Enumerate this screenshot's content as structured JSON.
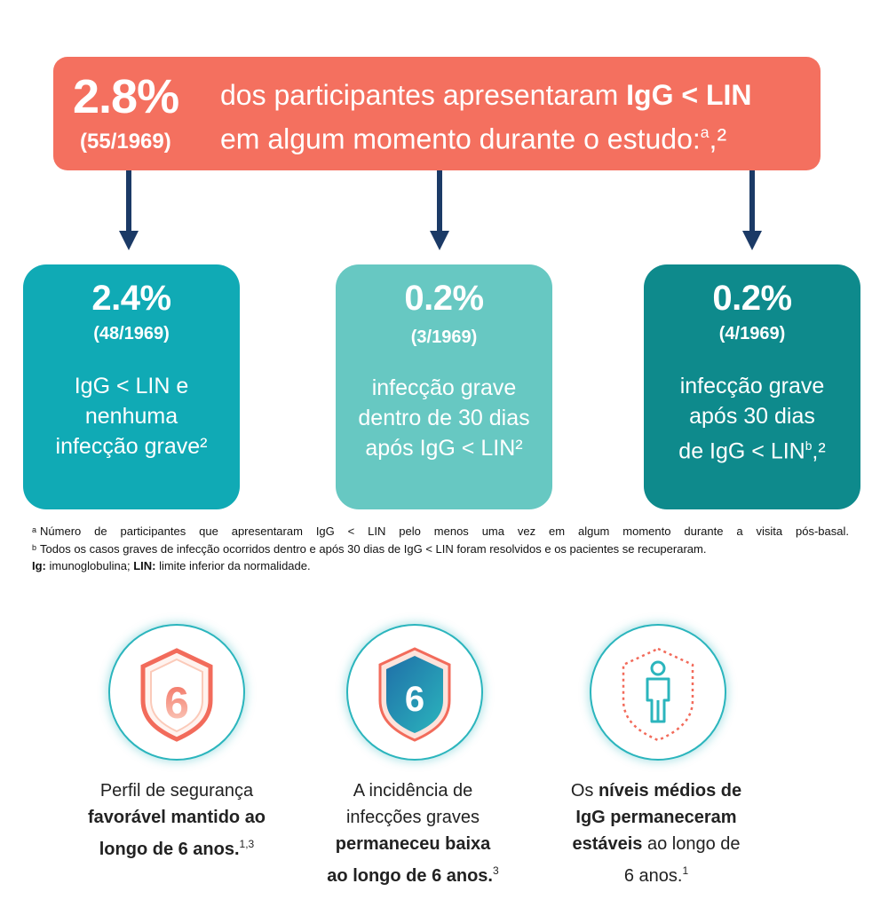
{
  "banner": {
    "percent": "2.8%",
    "fraction": "(55/1969)",
    "line1_plain": "dos participantes apresentaram ",
    "line1_bold": "IgG < LIN",
    "line2": "em algum momento durante o estudo:",
    "line2_sup": "a",
    "line2_tail": ",²"
  },
  "boxes": [
    {
      "percent": "2.4%",
      "fraction": "(48/1969)",
      "lines": [
        "IgG < LIN e",
        "nenhuma",
        "infecção grave²"
      ],
      "color": "#10aab5"
    },
    {
      "percent": "0.2%",
      "fraction": "(3/1969)",
      "lines": [
        "infecção grave",
        "dentro de 30 dias",
        "após IgG < LIN²"
      ],
      "color": "#67c8c2"
    },
    {
      "percent": "0.2%",
      "fraction": "(4/1969)",
      "lines": [
        "infecção grave",
        "após 30 dias",
        "de IgG < LIN"
      ],
      "sup": "b",
      "tail": ",²",
      "color": "#0e8a8c"
    }
  ],
  "footnotes": {
    "a_mark": "a",
    "a_text": "Número de participantes que apresentaram IgG < LIN pelo menos uma vez em algum momento durante a visita pós-basal.",
    "b_mark": "b",
    "b_text": "Todos os casos graves de infecção ocorridos dentro e após 30 dias de IgG < LIN foram resolvidos e os pacientes se recuperaram.",
    "abbr_ig_label": "Ig:",
    "abbr_ig_text": " imunoglobulina; ",
    "abbr_lin_label": "LIN:",
    "abbr_lin_text": " limite inferior da normalidade."
  },
  "icons": [
    {
      "name": "shield-six-outline-icon",
      "digit": "6"
    },
    {
      "name": "shield-six-filled-icon",
      "digit": "6"
    },
    {
      "name": "person-shield-icon"
    }
  ],
  "captions": {
    "c1_l1": "Perfil de segurança",
    "c1_l2": "favorável mantido ao",
    "c1_l3": "longo de 6 anos.",
    "c1_sup": "1,3",
    "c2_l1": "A incidência de",
    "c2_l2": "infecções graves",
    "c2_l3": "permaneceu baixa",
    "c2_l4": "ao longo de 6 anos.",
    "c2_sup": "3",
    "c3_l1_plain": "Os ",
    "c3_l1_bold": "níveis médios de",
    "c3_l2": "IgG permaneceram",
    "c3_l3_bold": "estáveis",
    "c3_l3_plain": " ao longo de",
    "c3_l4": "6 anos.",
    "c3_sup": "1"
  },
  "colors": {
    "banner": "#f4705f",
    "arrow": "#1b3a66",
    "accent_teal": "#2bb5bd"
  }
}
